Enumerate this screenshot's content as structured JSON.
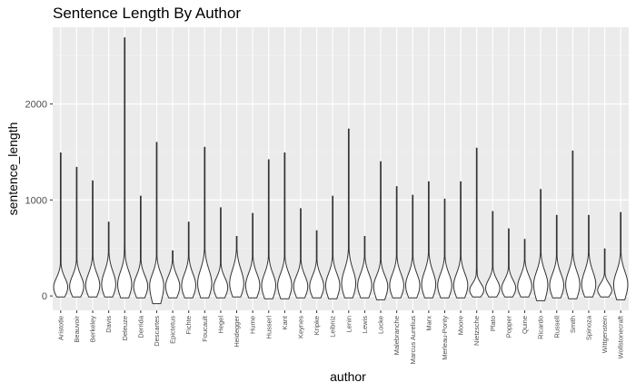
{
  "chart_data": {
    "type": "violin",
    "title": "Sentence Length By Author",
    "xlabel": "author",
    "ylabel": "sentence_length",
    "ylim": [
      -150,
      2800
    ],
    "yticks": [
      0,
      1000,
      2000
    ],
    "grid": true,
    "background": "#ebebeb",
    "categories": [
      "Aristotle",
      "Beauvoir",
      "Berkeley",
      "Davis",
      "Deleuze",
      "Derrida",
      "Descartes",
      "Epictetus",
      "Fichte",
      "Foucault",
      "Hegel",
      "Heidegger",
      "Hume",
      "Husserl",
      "Kant",
      "Keynes",
      "Kripke",
      "Leibniz",
      "Lenin",
      "Lewis",
      "Locke",
      "Malebranche",
      "Marcus Aurelius",
      "Marx",
      "Merleau-Ponty",
      "Moore",
      "Nietzsche",
      "Plato",
      "Popper",
      "Quine",
      "Ricardo",
      "Russell",
      "Smith",
      "Spinoza",
      "Wittgenstein",
      "Wollstonecraft"
    ],
    "series": [
      {
        "min": [
          -10,
          -10,
          -10,
          -10,
          -20,
          -20,
          -80,
          -20,
          -20,
          -20,
          -20,
          -10,
          -20,
          -30,
          -30,
          -20,
          -20,
          -30,
          -20,
          -20,
          -40,
          -20,
          -20,
          -20,
          -20,
          -20,
          -10,
          -10,
          -10,
          -10,
          -50,
          -20,
          -30,
          -10,
          -10,
          -40
        ],
        "max": [
          1490,
          1340,
          1200,
          770,
          2690,
          1040,
          1600,
          470,
          770,
          1550,
          920,
          620,
          860,
          1420,
          1490,
          910,
          680,
          1040,
          1740,
          620,
          1400,
          1140,
          1050,
          1190,
          1010,
          1190,
          1540,
          880,
          700,
          590,
          1110,
          840,
          1510,
          840,
          490,
          870
        ],
        "median": [
          90,
          100,
          110,
          120,
          120,
          100,
          110,
          100,
          110,
          130,
          90,
          130,
          110,
          110,
          110,
          100,
          100,
          110,
          130,
          110,
          100,
          110,
          110,
          120,
          110,
          110,
          60,
          80,
          80,
          100,
          120,
          110,
          120,
          120,
          60,
          120
        ]
      }
    ]
  }
}
